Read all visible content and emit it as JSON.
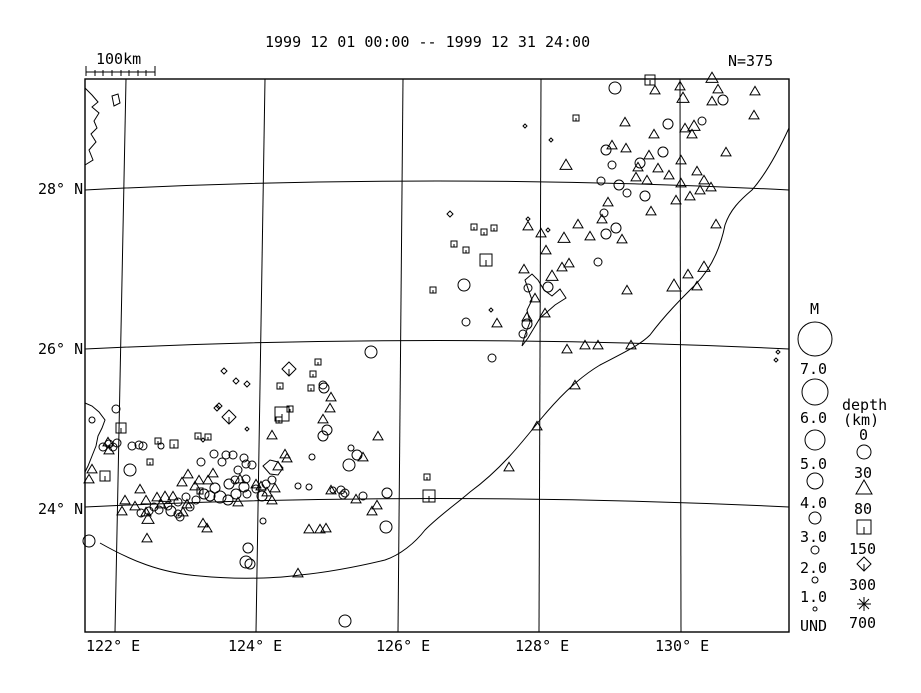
{
  "header": {
    "date_range": "1999 12 01 00:00 -- 1999 12 31 24:00",
    "count": "N=375",
    "scale_label": "100km"
  },
  "axes": {
    "lat_labels": [
      "28° N",
      "26° N",
      "24° N"
    ],
    "lon_labels": [
      "122° E",
      "124° E",
      "126° E",
      "128° E",
      "130° E"
    ]
  },
  "legend": {
    "magnitude_title": "M",
    "magnitudes": [
      "7.0",
      "6.0",
      "5.0",
      "4.0",
      "3.0",
      "2.0",
      "1.0",
      "UND"
    ],
    "depth_title": "depth",
    "depth_unit": "(km)",
    "depths": [
      "0",
      "30",
      "80",
      "150",
      "300",
      "700"
    ]
  },
  "colors": {
    "ink": "#000000",
    "paper": "#ffffff"
  },
  "events": {
    "circles": [
      [
        615,
        88,
        6
      ],
      [
        723,
        100,
        5
      ],
      [
        702,
        121,
        4
      ],
      [
        668,
        124,
        5
      ],
      [
        606,
        150,
        5
      ],
      [
        612,
        165,
        4
      ],
      [
        640,
        163,
        5
      ],
      [
        663,
        152,
        5
      ],
      [
        601,
        181,
        4
      ],
      [
        619,
        185,
        5
      ],
      [
        627,
        193,
        4
      ],
      [
        645,
        196,
        5
      ],
      [
        604,
        213,
        4
      ],
      [
        616,
        228,
        5
      ],
      [
        606,
        234,
        5
      ],
      [
        598,
        262,
        4
      ],
      [
        464,
        285,
        6
      ],
      [
        528,
        288,
        4
      ],
      [
        548,
        287,
        5
      ],
      [
        466,
        322,
        4
      ],
      [
        527,
        324,
        5
      ],
      [
        523,
        334,
        4
      ],
      [
        492,
        358,
        4
      ],
      [
        371,
        352,
        6
      ],
      [
        116,
        409,
        4
      ],
      [
        92,
        420,
        3
      ],
      [
        103,
        447,
        4
      ],
      [
        109,
        444,
        4
      ],
      [
        113,
        447,
        4
      ],
      [
        117,
        443,
        4
      ],
      [
        132,
        446,
        4
      ],
      [
        139,
        445,
        4
      ],
      [
        143,
        446,
        4
      ],
      [
        161,
        446,
        3
      ],
      [
        214,
        454,
        4
      ],
      [
        226,
        455,
        4
      ],
      [
        233,
        455,
        4
      ],
      [
        201,
        462,
        4
      ],
      [
        222,
        462,
        4
      ],
      [
        244,
        458,
        4
      ],
      [
        246,
        464,
        4
      ],
      [
        252,
        465,
        4
      ],
      [
        238,
        470,
        4
      ],
      [
        130,
        470,
        6
      ],
      [
        246,
        479,
        4
      ],
      [
        235,
        480,
        4
      ],
      [
        229,
        484,
        5
      ],
      [
        215,
        488,
        5
      ],
      [
        204,
        494,
        5
      ],
      [
        210,
        496,
        5
      ],
      [
        220,
        497,
        6
      ],
      [
        228,
        500,
        5
      ],
      [
        236,
        494,
        5
      ],
      [
        244,
        487,
        5
      ],
      [
        247,
        494,
        4
      ],
      [
        256,
        489,
        4
      ],
      [
        262,
        496,
        5
      ],
      [
        266,
        484,
        4
      ],
      [
        272,
        480,
        4
      ],
      [
        186,
        497,
        4
      ],
      [
        178,
        502,
        4
      ],
      [
        168,
        506,
        4
      ],
      [
        159,
        510,
        4
      ],
      [
        149,
        511,
        4
      ],
      [
        141,
        513,
        4
      ],
      [
        154,
        507,
        4
      ],
      [
        171,
        511,
        5
      ],
      [
        178,
        514,
        4
      ],
      [
        190,
        507,
        4
      ],
      [
        196,
        500,
        4
      ],
      [
        324,
        388,
        5
      ],
      [
        327,
        430,
        5
      ],
      [
        323,
        436,
        5
      ],
      [
        387,
        493,
        5
      ],
      [
        349,
        465,
        6
      ],
      [
        357,
        455,
        5
      ],
      [
        341,
        490,
        4
      ],
      [
        343,
        495,
        4
      ],
      [
        345,
        493,
        4
      ],
      [
        363,
        496,
        4
      ],
      [
        386,
        527,
        6
      ],
      [
        89,
        541,
        6
      ],
      [
        248,
        548,
        5
      ],
      [
        246,
        562,
        6
      ],
      [
        250,
        564,
        5
      ],
      [
        345,
        621,
        6
      ],
      [
        323,
        385,
        4
      ],
      [
        180,
        517,
        4
      ],
      [
        263,
        521,
        3
      ],
      [
        312,
        457,
        3
      ],
      [
        309,
        487,
        3
      ],
      [
        351,
        448,
        3
      ],
      [
        333,
        490,
        3
      ],
      [
        298,
        486,
        3
      ]
    ],
    "triangles": [
      [
        712,
        79,
        6
      ],
      [
        718,
        90,
        5
      ],
      [
        680,
        87,
        5
      ],
      [
        655,
        91,
        5
      ],
      [
        683,
        99,
        6
      ],
      [
        712,
        102,
        5
      ],
      [
        755,
        92,
        5
      ],
      [
        754,
        116,
        5
      ],
      [
        694,
        127,
        6
      ],
      [
        685,
        129,
        5
      ],
      [
        692,
        135,
        5
      ],
      [
        625,
        123,
        5
      ],
      [
        654,
        135,
        5
      ],
      [
        566,
        166,
        6
      ],
      [
        612,
        146,
        5
      ],
      [
        626,
        149,
        5
      ],
      [
        649,
        156,
        5
      ],
      [
        681,
        161,
        5
      ],
      [
        638,
        168,
        5
      ],
      [
        636,
        178,
        5
      ],
      [
        647,
        181,
        5
      ],
      [
        658,
        169,
        5
      ],
      [
        669,
        176,
        5
      ],
      [
        681,
        184,
        5
      ],
      [
        697,
        172,
        5
      ],
      [
        704,
        181,
        5
      ],
      [
        711,
        188,
        5
      ],
      [
        700,
        191,
        5
      ],
      [
        690,
        197,
        5
      ],
      [
        726,
        153,
        5
      ],
      [
        676,
        201,
        5
      ],
      [
        651,
        212,
        5
      ],
      [
        608,
        203,
        5
      ],
      [
        602,
        220,
        5
      ],
      [
        622,
        240,
        5
      ],
      [
        590,
        237,
        5
      ],
      [
        578,
        225,
        5
      ],
      [
        564,
        239,
        6
      ],
      [
        541,
        234,
        5
      ],
      [
        528,
        227,
        5
      ],
      [
        546,
        251,
        5
      ],
      [
        569,
        264,
        5
      ],
      [
        562,
        268,
        5
      ],
      [
        524,
        270,
        5
      ],
      [
        552,
        277,
        6
      ],
      [
        535,
        299,
        5
      ],
      [
        545,
        314,
        5
      ],
      [
        527,
        318,
        5
      ],
      [
        497,
        324,
        5
      ],
      [
        567,
        350,
        5
      ],
      [
        585,
        346,
        5
      ],
      [
        598,
        346,
        5
      ],
      [
        631,
        346,
        5
      ],
      [
        627,
        291,
        5
      ],
      [
        674,
        287,
        7
      ],
      [
        697,
        287,
        5
      ],
      [
        688,
        275,
        5
      ],
      [
        704,
        268,
        6
      ],
      [
        716,
        225,
        5
      ],
      [
        575,
        386,
        5
      ],
      [
        537,
        427,
        5
      ],
      [
        509,
        468,
        5
      ],
      [
        298,
        574,
        5
      ],
      [
        147,
        539,
        5
      ],
      [
        320,
        530,
        5
      ],
      [
        326,
        529,
        5
      ],
      [
        309,
        530,
        5
      ],
      [
        207,
        529,
        5
      ],
      [
        203,
        524,
        5
      ],
      [
        148,
        520,
        6
      ],
      [
        108,
        443,
        5
      ],
      [
        109,
        451,
        5
      ],
      [
        92,
        470,
        5
      ],
      [
        89,
        480,
        5
      ],
      [
        272,
        436,
        5
      ],
      [
        285,
        455,
        5
      ],
      [
        287,
        459,
        5
      ],
      [
        331,
        398,
        5
      ],
      [
        330,
        409,
        5
      ],
      [
        323,
        420,
        5
      ],
      [
        378,
        437,
        5
      ],
      [
        363,
        458,
        5
      ],
      [
        356,
        500,
        5
      ],
      [
        331,
        491,
        5
      ],
      [
        377,
        506,
        5
      ],
      [
        372,
        512,
        5
      ],
      [
        188,
        475,
        5
      ],
      [
        182,
        483,
        5
      ],
      [
        140,
        490,
        5
      ],
      [
        125,
        501,
        5
      ],
      [
        135,
        507,
        5
      ],
      [
        122,
        512,
        5
      ],
      [
        146,
        513,
        5
      ],
      [
        146,
        501,
        5
      ],
      [
        165,
        498,
        6
      ],
      [
        173,
        497,
        5
      ],
      [
        195,
        487,
        5
      ],
      [
        187,
        505,
        5
      ],
      [
        161,
        505,
        5
      ],
      [
        157,
        498,
        5
      ],
      [
        183,
        513,
        5
      ],
      [
        213,
        474,
        5
      ],
      [
        208,
        481,
        5
      ],
      [
        199,
        481,
        5
      ],
      [
        240,
        480,
        5
      ],
      [
        256,
        485,
        5
      ],
      [
        261,
        487,
        5
      ],
      [
        267,
        493,
        5
      ],
      [
        275,
        489,
        5
      ],
      [
        272,
        501,
        5
      ],
      [
        238,
        503,
        5
      ],
      [
        278,
        467,
        5
      ]
    ],
    "squares": [
      [
        650,
        80,
        5
      ],
      [
        576,
        118,
        3
      ],
      [
        474,
        227,
        3
      ],
      [
        484,
        232,
        3
      ],
      [
        494,
        228,
        3
      ],
      [
        454,
        244,
        3
      ],
      [
        466,
        250,
        3
      ],
      [
        486,
        260,
        6
      ],
      [
        433,
        290,
        3
      ],
      [
        318,
        362,
        3
      ],
      [
        313,
        374,
        3
      ],
      [
        311,
        388,
        3
      ],
      [
        280,
        386,
        3
      ],
      [
        282,
        414,
        7
      ],
      [
        290,
        409,
        3
      ],
      [
        279,
        420,
        3
      ],
      [
        121,
        428,
        5
      ],
      [
        105,
        476,
        5
      ],
      [
        174,
        444,
        4
      ],
      [
        158,
        441,
        3
      ],
      [
        150,
        462,
        3
      ],
      [
        198,
        436,
        3
      ],
      [
        208,
        437,
        3
      ],
      [
        429,
        496,
        6
      ],
      [
        427,
        477,
        3
      ],
      [
        200,
        491,
        3
      ]
    ],
    "diamonds": [
      [
        525,
        126,
        2
      ],
      [
        551,
        140,
        2
      ],
      [
        450,
        214,
        3
      ],
      [
        528,
        219,
        2
      ],
      [
        289,
        369,
        7
      ],
      [
        229,
        417,
        7
      ],
      [
        217,
        408,
        3
      ],
      [
        219,
        406,
        3
      ],
      [
        224,
        371,
        3
      ],
      [
        236,
        381,
        3
      ],
      [
        247,
        384,
        3
      ],
      [
        203,
        440,
        2
      ],
      [
        247,
        429,
        2
      ],
      [
        778,
        352,
        2
      ],
      [
        776,
        360,
        2
      ],
      [
        491,
        310,
        2
      ],
      [
        548,
        230,
        2
      ]
    ]
  }
}
